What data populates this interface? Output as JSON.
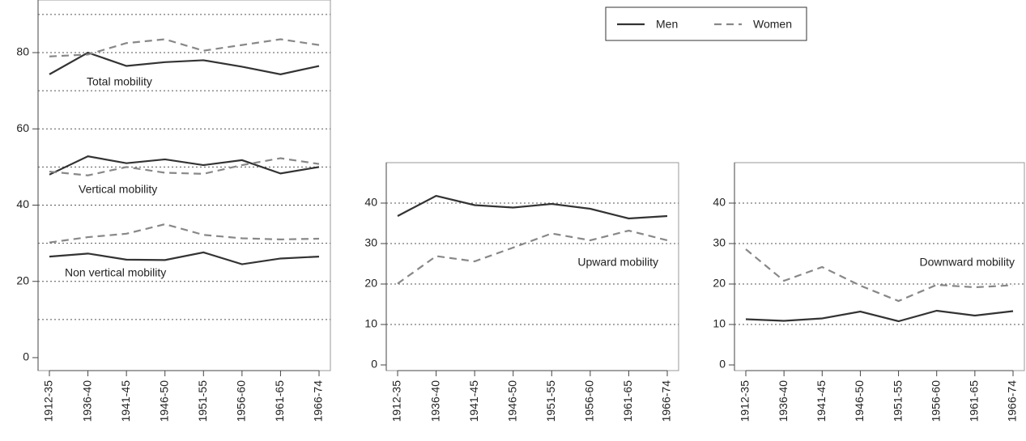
{
  "chart_data": [
    {
      "type": "line",
      "categories": [
        "1912-35",
        "1936-40",
        "1941-45",
        "1946-50",
        "1951-55",
        "1956-60",
        "1961-65",
        "1966-74"
      ],
      "ylim": [
        -3.4,
        93.8
      ],
      "yticks": [
        0,
        20,
        40,
        60,
        80
      ],
      "ygrid": [
        10,
        20,
        30,
        40,
        50,
        60,
        70,
        80,
        90
      ],
      "annotations": [
        "Total mobility",
        "Vertical mobility",
        "Non vertical mobility"
      ],
      "series": [
        {
          "name": "Men",
          "color": "#333333",
          "dashed": false,
          "values": [
            74.3,
            80,
            76.5,
            77.5,
            78,
            76.3,
            74.3,
            76.5
          ]
        },
        {
          "name": "Women",
          "color": "#888888",
          "dashed": true,
          "values": [
            79,
            79.5,
            82.5,
            83.5,
            80.5,
            82,
            83.5,
            82
          ]
        },
        {
          "name": "Men",
          "color": "#333333",
          "dashed": false,
          "values": [
            48,
            52.8,
            51,
            52,
            50.5,
            51.8,
            48.3,
            50
          ]
        },
        {
          "name": "Women",
          "color": "#888888",
          "dashed": true,
          "values": [
            48.8,
            47.8,
            50,
            48.5,
            48.2,
            50.5,
            52.3,
            50.8
          ]
        },
        {
          "name": "Men",
          "color": "#333333",
          "dashed": false,
          "values": [
            26.5,
            27.3,
            25.7,
            25.6,
            27.6,
            24.5,
            26,
            26.5
          ]
        },
        {
          "name": "Women",
          "color": "#888888",
          "dashed": true,
          "values": [
            30.2,
            31.6,
            32.5,
            35,
            32.2,
            31.3,
            31,
            31.2
          ]
        }
      ]
    },
    {
      "type": "line",
      "categories": [
        "1912-35",
        "1936-40",
        "1941-45",
        "1946-50",
        "1951-55",
        "1956-60",
        "1961-65",
        "1966-74"
      ],
      "ylim": [
        -1.4,
        50
      ],
      "yticks": [
        0,
        10,
        20,
        30,
        40
      ],
      "ygrid": [
        10,
        20,
        30,
        40
      ],
      "annotations": [
        "Upward mobility"
      ],
      "series": [
        {
          "name": "Men",
          "color": "#333333",
          "dashed": false,
          "values": [
            36.8,
            41.8,
            39.5,
            38.9,
            39.8,
            38.6,
            36.2,
            36.8
          ]
        },
        {
          "name": "Women",
          "color": "#888888",
          "dashed": true,
          "values": [
            20.1,
            26.9,
            25.6,
            29,
            32.5,
            30.8,
            33.2,
            30.8
          ]
        }
      ]
    },
    {
      "type": "line",
      "categories": [
        "1912-35",
        "1936-40",
        "1941-45",
        "1946-50",
        "1951-55",
        "1956-60",
        "1961-65",
        "1966-74"
      ],
      "ylim": [
        -1.4,
        50
      ],
      "yticks": [
        0,
        10,
        20,
        30,
        40
      ],
      "ygrid": [
        10,
        20,
        30,
        40
      ],
      "annotations": [
        "Downward mobility"
      ],
      "series": [
        {
          "name": "Men",
          "color": "#333333",
          "dashed": false,
          "values": [
            11.3,
            10.9,
            11.5,
            13.2,
            10.8,
            13.4,
            12.2,
            13.3
          ]
        },
        {
          "name": "Women",
          "color": "#888888",
          "dashed": true,
          "values": [
            28.6,
            20.8,
            24.2,
            19.6,
            15.8,
            19.8,
            19.2,
            19.7
          ]
        }
      ]
    }
  ]
}
